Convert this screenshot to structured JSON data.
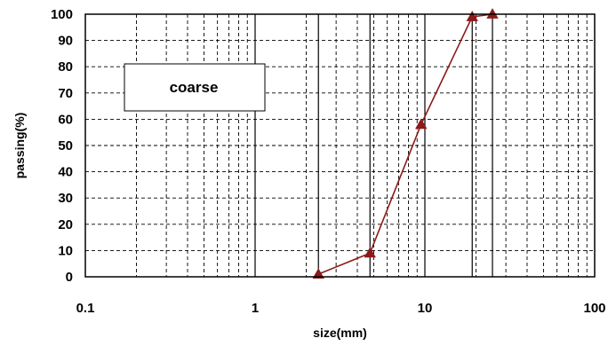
{
  "chart_data": {
    "type": "line",
    "x_scale": "log",
    "xlabel": "size(mm)",
    "ylabel": "passing(%)",
    "xlim": [
      0.1,
      100
    ],
    "ylim": [
      0,
      100
    ],
    "x_ticks": [
      "0.1",
      "1",
      "10",
      "100"
    ],
    "y_ticks": [
      "0",
      "10",
      "20",
      "30",
      "40",
      "50",
      "60",
      "70",
      "80",
      "90",
      "100"
    ],
    "grid": true,
    "legend_box_text": "coarse",
    "sieve_lines_x": [
      2.36,
      4.75,
      19,
      25
    ],
    "series": [
      {
        "color": "#8b1a1a",
        "marker": "triangle",
        "x": [
          2.36,
          4.75,
          9.5,
          19,
          25
        ],
        "y": [
          1,
          9,
          58,
          99,
          100
        ]
      }
    ]
  }
}
